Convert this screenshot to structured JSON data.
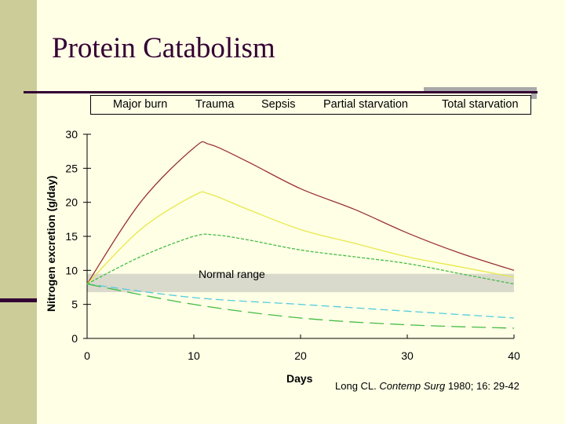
{
  "slide_title": "Protein Catabolism",
  "citation": {
    "authors": "Long CL. ",
    "journal": "Contemp Surg",
    "details": " 1980; 16: 29-42"
  },
  "chart_data": {
    "type": "line",
    "title": "",
    "xlabel": "Days",
    "ylabel": "Nitrogen excretion (g/day)",
    "xlim": [
      0,
      40
    ],
    "ylim": [
      0,
      30
    ],
    "xticks": [
      0,
      10,
      20,
      30,
      40
    ],
    "yticks": [
      0,
      5,
      10,
      15,
      20,
      25,
      30
    ],
    "grid": false,
    "legend_placement": "top",
    "band": {
      "label": "Normal range",
      "range": [
        6.8,
        9.5
      ],
      "color": "#d9d9cc"
    },
    "series": [
      {
        "name": "Major burn",
        "color": "#993333",
        "dash": "none",
        "x": [
          0,
          5,
          10,
          11.5,
          15,
          20,
          25,
          30,
          35,
          40
        ],
        "y": [
          8,
          20,
          28,
          28.5,
          26,
          22,
          19,
          15.5,
          12.5,
          10
        ]
      },
      {
        "name": "Trauma",
        "color": "#e8e84a",
        "dash": "none",
        "x": [
          0,
          5,
          10,
          11.5,
          15,
          20,
          25,
          30,
          35,
          40
        ],
        "y": [
          8,
          16,
          21,
          21.2,
          19,
          16,
          14,
          12,
          10.5,
          9
        ]
      },
      {
        "name": "Sepsis",
        "color": "#44bb44",
        "dash": "short",
        "x": [
          0,
          5,
          10,
          12,
          15,
          20,
          25,
          30,
          35,
          40
        ],
        "y": [
          8,
          12,
          15,
          15.2,
          14.5,
          13,
          12,
          11,
          9.5,
          8
        ]
      },
      {
        "name": "Partial starvation",
        "color": "#55ccdd",
        "dash": "medium",
        "x": [
          0,
          10,
          20,
          30,
          40
        ],
        "y": [
          8,
          6,
          5,
          4,
          3
        ]
      },
      {
        "name": "Total starvation",
        "color": "#44bb44",
        "dash": "long",
        "x": [
          0,
          10,
          20,
          30,
          40
        ],
        "y": [
          8,
          5,
          3,
          2,
          1.5
        ]
      }
    ]
  }
}
